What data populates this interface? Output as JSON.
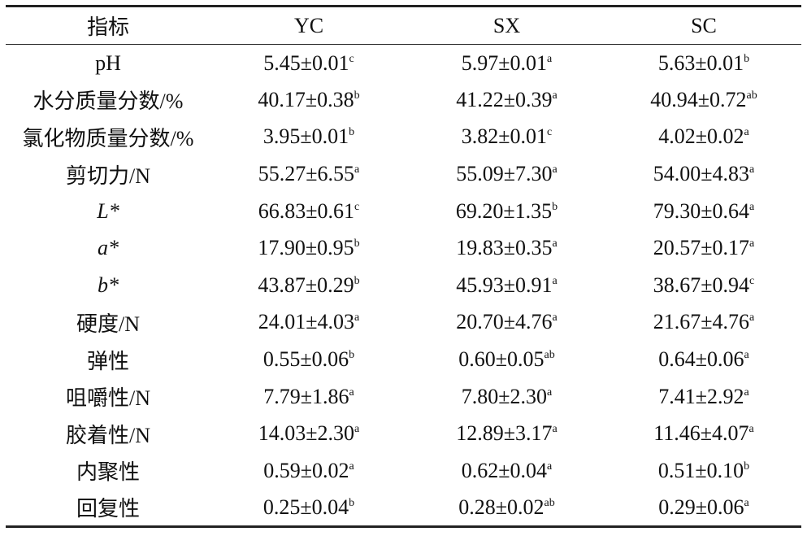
{
  "table": {
    "header": [
      "指标",
      "YC",
      "SX",
      "SC"
    ],
    "rows": [
      [
        "pH",
        {
          "value": "5.45±0.01",
          "sup": "c"
        },
        {
          "value": "5.97±0.01",
          "sup": "a"
        },
        {
          "value": "5.63±0.01",
          "sup": "b"
        }
      ],
      [
        "水分质量分数/%",
        {
          "value": "40.17±0.38",
          "sup": "b"
        },
        {
          "value": "41.22±0.39",
          "sup": "a"
        },
        {
          "value": "40.94±0.72",
          "sup": "ab"
        }
      ],
      [
        "氯化物质量分数/%",
        {
          "value": "3.95±0.01",
          "sup": "b"
        },
        {
          "value": "3.82±0.01",
          "sup": "c"
        },
        {
          "value": "4.02±0.02",
          "sup": "a"
        }
      ],
      [
        "剪切力/N",
        {
          "value": "55.27±6.55",
          "sup": "a"
        },
        {
          "value": "55.09±7.30",
          "sup": "a"
        },
        {
          "value": "54.00±4.83",
          "sup": "a"
        }
      ],
      [
        "L*",
        {
          "value": "66.83±0.61",
          "sup": "c"
        },
        {
          "value": "69.20±1.35",
          "sup": "b"
        },
        {
          "value": "79.30±0.64",
          "sup": "a"
        }
      ],
      [
        "a*",
        {
          "value": "17.90±0.95",
          "sup": "b"
        },
        {
          "value": "19.83±0.35",
          "sup": "a"
        },
        {
          "value": "20.57±0.17",
          "sup": "a"
        }
      ],
      [
        "b*",
        {
          "value": "43.87±0.29",
          "sup": "b"
        },
        {
          "value": "45.93±0.91",
          "sup": "a"
        },
        {
          "value": "38.67±0.94",
          "sup": "c"
        }
      ],
      [
        "硬度/N",
        {
          "value": "24.01±4.03",
          "sup": "a"
        },
        {
          "value": "20.70±4.76",
          "sup": "a"
        },
        {
          "value": "21.67±4.76",
          "sup": "a"
        }
      ],
      [
        "弹性",
        {
          "value": "0.55±0.06",
          "sup": "b"
        },
        {
          "value": "0.60±0.05",
          "sup": "ab"
        },
        {
          "value": "0.64±0.06",
          "sup": "a"
        }
      ],
      [
        "咀嚼性/N",
        {
          "value": "7.79±1.86",
          "sup": "a"
        },
        {
          "value": "7.80±2.30",
          "sup": "a"
        },
        {
          "value": "7.41±2.92",
          "sup": "a"
        }
      ],
      [
        "胶着性/N",
        {
          "value": "14.03±2.30",
          "sup": "a"
        },
        {
          "value": "12.89±3.17",
          "sup": "a"
        },
        {
          "value": "11.46±4.07",
          "sup": "a"
        }
      ],
      [
        "内聚性",
        {
          "value": "0.59±0.02",
          "sup": "a"
        },
        {
          "value": "0.62±0.04",
          "sup": "a"
        },
        {
          "value": "0.51±0.10",
          "sup": "b"
        }
      ],
      [
        "回复性",
        {
          "value": "0.25±0.04",
          "sup": "b"
        },
        {
          "value": "0.28±0.02",
          "sup": "ab"
        },
        {
          "value": "0.29±0.06",
          "sup": "a"
        }
      ]
    ]
  }
}
